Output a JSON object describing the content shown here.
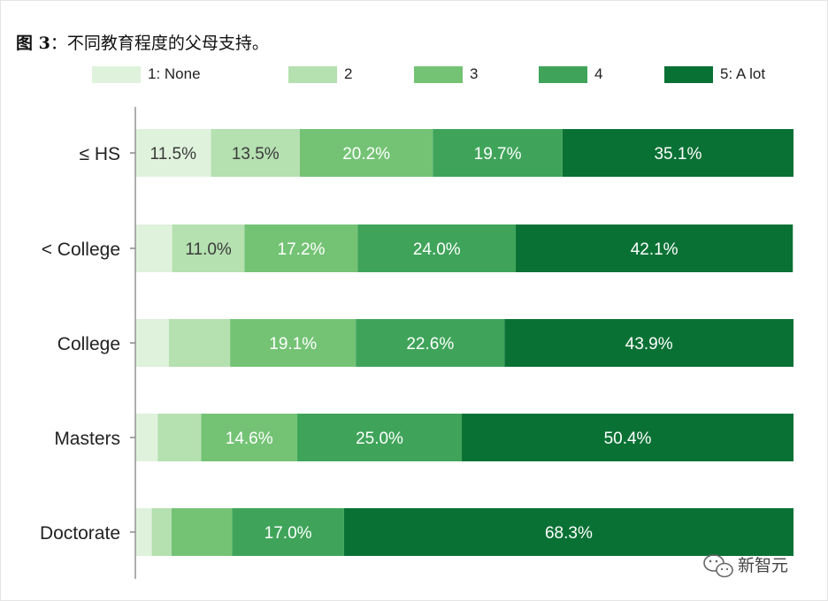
{
  "caption": {
    "figure_label": "图 3",
    "separator": "：",
    "text": "不同教育程度的父母支持。"
  },
  "watermark": {
    "text": "新智元",
    "icon": "wechat-icon"
  },
  "chart_data": {
    "type": "bar",
    "orientation": "horizontal",
    "stacked": true,
    "normalized": true,
    "categories": [
      "≤ HS",
      "< College",
      "College",
      "Masters",
      "Doctorate"
    ],
    "series": [
      {
        "name": "1: None",
        "color": "#dff2dc",
        "values": [
          11.5,
          5.6,
          5.1,
          3.4,
          2.5
        ]
      },
      {
        "name": "2",
        "color": "#b5e0b0",
        "values": [
          13.5,
          11.0,
          9.3,
          6.6,
          3.0
        ]
      },
      {
        "name": "3",
        "color": "#74c375",
        "values": [
          20.2,
          17.2,
          19.1,
          14.6,
          9.2
        ]
      },
      {
        "name": "4",
        "color": "#3fa45a",
        "values": [
          19.7,
          24.0,
          22.6,
          25.0,
          17.0
        ]
      },
      {
        "name": "5: A lot",
        "color": "#0a7135",
        "values": [
          35.1,
          42.1,
          43.9,
          50.4,
          68.3
        ]
      }
    ],
    "labels": [
      [
        "11.5%",
        "13.5%",
        "20.2%",
        "19.7%",
        "35.1%"
      ],
      [
        "",
        "11.0%",
        "17.2%",
        "24.0%",
        "42.1%"
      ],
      [
        "",
        "",
        "19.1%",
        "22.6%",
        "43.9%"
      ],
      [
        "",
        "",
        "14.6%",
        "25.0%",
        "50.4%"
      ],
      [
        "",
        "",
        "",
        "17.0%",
        "68.3%"
      ]
    ],
    "xlim": [
      0,
      100
    ],
    "legend_position": "top",
    "grid": false
  }
}
